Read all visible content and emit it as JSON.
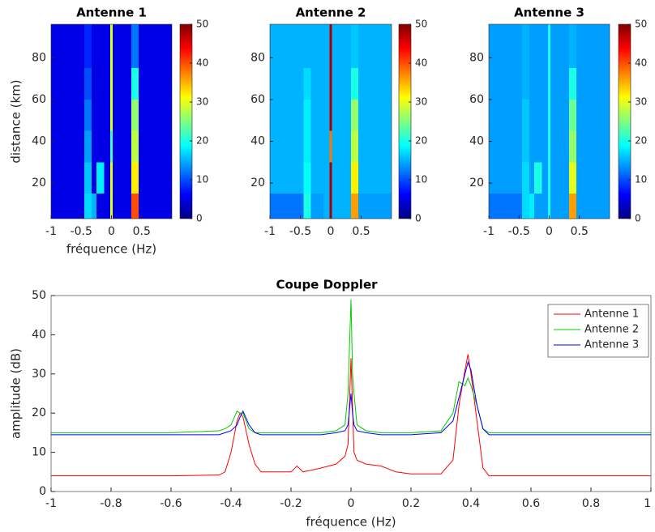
{
  "chart_data": [
    {
      "type": "heatmap",
      "title": "Antenne 1",
      "xlabel": "fréquence (Hz)",
      "ylabel": "distance (km)",
      "colormap": "jet",
      "x_edges": [
        -1,
        -0.45,
        -0.33,
        -0.25,
        -0.12,
        -0.02,
        0.02,
        0.33,
        0.45,
        1
      ],
      "y_edges": [
        3,
        15,
        30,
        45,
        60,
        75,
        96
      ],
      "z": [
        [
          5,
          17,
          15,
          5,
          5,
          30,
          5,
          40,
          5
        ],
        [
          5,
          16,
          5,
          18,
          5,
          30,
          5,
          32,
          5
        ],
        [
          5,
          14,
          5,
          5,
          5,
          22,
          5,
          28,
          5
        ],
        [
          5,
          12,
          5,
          5,
          5,
          30,
          5,
          26,
          5
        ],
        [
          5,
          10,
          5,
          5,
          5,
          30,
          5,
          20,
          5
        ],
        [
          5,
          8,
          5,
          5,
          5,
          30,
          5,
          12,
          5
        ]
      ],
      "xlim": [
        -1,
        1
      ],
      "ylim": [
        3,
        96
      ],
      "xticks": [
        -1,
        -0.5,
        0,
        0.5
      ],
      "yticks": [
        20,
        40,
        60,
        80
      ],
      "clim": [
        0,
        50
      ],
      "cticks": [
        0,
        10,
        20,
        30,
        40,
        50
      ]
    },
    {
      "type": "heatmap",
      "title": "Antenne 2",
      "colormap": "jet",
      "x_edges": [
        -1,
        -0.45,
        -0.33,
        -0.25,
        -0.12,
        -0.02,
        0.02,
        0.33,
        0.45,
        1
      ],
      "y_edges": [
        3,
        15,
        30,
        45,
        60,
        75,
        96
      ],
      "z": [
        [
          12,
          20,
          14,
          14,
          15,
          48,
          15,
          36,
          14
        ],
        [
          15,
          19,
          15,
          15,
          15,
          48,
          15,
          32,
          15
        ],
        [
          15,
          18,
          15,
          15,
          15,
          38,
          15,
          28,
          15
        ],
        [
          15,
          18,
          15,
          15,
          15,
          48,
          15,
          26,
          15
        ],
        [
          15,
          17,
          15,
          15,
          15,
          48,
          15,
          20,
          15
        ],
        [
          15,
          15,
          15,
          15,
          15,
          48,
          15,
          16,
          15
        ]
      ],
      "xlim": [
        -1,
        1
      ],
      "ylim": [
        3,
        96
      ],
      "xticks": [
        -1,
        -0.5,
        0,
        0.5
      ],
      "yticks": [
        20,
        40,
        60,
        80
      ],
      "clim": [
        0,
        50
      ],
      "cticks": [
        0,
        10,
        20,
        30,
        40,
        50
      ]
    },
    {
      "type": "heatmap",
      "title": "Antenne 3",
      "colormap": "jet",
      "x_edges": [
        -1,
        -0.45,
        -0.33,
        -0.25,
        -0.12,
        -0.02,
        0.02,
        0.33,
        0.45,
        1
      ],
      "y_edges": [
        3,
        15,
        30,
        45,
        60,
        75,
        96
      ],
      "z": [
        [
          12,
          17,
          18,
          14,
          14,
          20,
          14,
          36,
          14
        ],
        [
          14,
          17,
          14,
          20,
          14,
          20,
          14,
          30,
          14
        ],
        [
          14,
          16,
          14,
          14,
          14,
          20,
          14,
          26,
          14
        ],
        [
          14,
          16,
          14,
          14,
          14,
          20,
          14,
          24,
          14
        ],
        [
          14,
          15,
          14,
          14,
          14,
          20,
          14,
          20,
          14
        ],
        [
          14,
          15,
          14,
          14,
          14,
          20,
          14,
          15,
          14
        ]
      ],
      "xlim": [
        -1,
        1
      ],
      "ylim": [
        3,
        96
      ],
      "xticks": [
        -1,
        -0.5,
        0,
        0.5
      ],
      "yticks": [
        20,
        40,
        60,
        80
      ],
      "clim": [
        0,
        50
      ],
      "cticks": [
        0,
        10,
        20,
        30,
        40,
        50
      ]
    },
    {
      "type": "line",
      "title": "Coupe Doppler",
      "xlabel": "fréquence (Hz)",
      "ylabel": "amplitude (dB)",
      "x": [
        -1,
        -0.8,
        -0.6,
        -0.44,
        -0.42,
        -0.4,
        -0.38,
        -0.37,
        -0.36,
        -0.34,
        -0.32,
        -0.3,
        -0.2,
        -0.18,
        -0.16,
        -0.1,
        -0.05,
        -0.02,
        -0.01,
        0,
        0.005,
        0.01,
        0.02,
        0.05,
        0.1,
        0.15,
        0.2,
        0.3,
        0.34,
        0.36,
        0.38,
        0.39,
        0.4,
        0.42,
        0.44,
        0.46,
        0.5,
        0.6,
        0.8,
        1
      ],
      "series": [
        {
          "name": "Antenne 1",
          "color": "#ff0000",
          "values": [
            4,
            4,
            4,
            4.2,
            5,
            10,
            18,
            20,
            19,
            12,
            7,
            5,
            5,
            6.5,
            5,
            6,
            7,
            9,
            12,
            34,
            22,
            10,
            8,
            7,
            6.5,
            5,
            4.5,
            4.5,
            8,
            22,
            31,
            35,
            30,
            18,
            6,
            4,
            4,
            4,
            4,
            4
          ]
        },
        {
          "name": "Antenne 2",
          "color": "#00cc00",
          "values": [
            15,
            15,
            15,
            15.5,
            16,
            17,
            20.5,
            20,
            20,
            16,
            15,
            15,
            15,
            15,
            15,
            15,
            15.5,
            17,
            25,
            49,
            30,
            25,
            17,
            15.5,
            15,
            15,
            15,
            15.5,
            20,
            28,
            27,
            29,
            27,
            22,
            16,
            15,
            15,
            15,
            15,
            15
          ]
        },
        {
          "name": "Antenne 3",
          "color": "#0000ff",
          "values": [
            14.5,
            14.5,
            14.5,
            14.5,
            15,
            15.5,
            17,
            19,
            20.5,
            17,
            15,
            14.5,
            14.5,
            14.5,
            14.5,
            14.5,
            15,
            15.5,
            17,
            25,
            20,
            17,
            15.5,
            15,
            14.5,
            14.5,
            14.5,
            15,
            18,
            24,
            30,
            33,
            31,
            22,
            16,
            14.5,
            14.5,
            14.5,
            14.5,
            14.5
          ]
        }
      ],
      "xlim": [
        -1,
        1
      ],
      "ylim": [
        0,
        50
      ],
      "xticks": [
        -1,
        -0.8,
        -0.6,
        -0.4,
        -0.2,
        0,
        0.2,
        0.4,
        0.6,
        0.8,
        1
      ],
      "yticks": [
        0,
        10,
        20,
        30,
        40,
        50
      ],
      "legend": "upper right"
    }
  ]
}
